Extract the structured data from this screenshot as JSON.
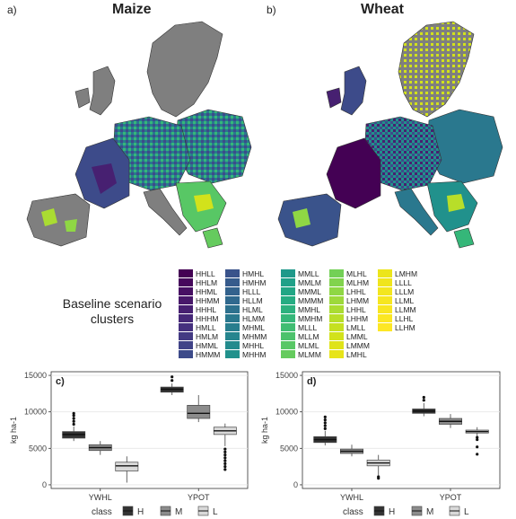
{
  "panels": {
    "a": {
      "tag": "a)",
      "title": "Maize"
    },
    "b": {
      "tag": "b)",
      "title": "Wheat"
    },
    "c": {
      "tag": "c)"
    },
    "d": {
      "tag": "d)"
    }
  },
  "legend": {
    "title": "Baseline scenario clusters",
    "columns": [
      [
        {
          "label": "HHLL",
          "color": "#440154"
        },
        {
          "label": "HHLM",
          "color": "#46085c"
        },
        {
          "label": "HHML",
          "color": "#471063"
        },
        {
          "label": "HHMM",
          "color": "#48186a"
        },
        {
          "label": "HHHL",
          "color": "#472071"
        },
        {
          "label": "HHHM",
          "color": "#462878"
        },
        {
          "label": "HMLL",
          "color": "#45307e"
        },
        {
          "label": "HMLM",
          "color": "#433a83"
        },
        {
          "label": "HMML",
          "color": "#404388"
        },
        {
          "label": "HMMM",
          "color": "#3d4b8a"
        }
      ],
      [
        {
          "label": "HMHL",
          "color": "#3a538b"
        },
        {
          "label": "HMHM",
          "color": "#365b8c"
        },
        {
          "label": "HLLL",
          "color": "#33628d"
        },
        {
          "label": "HLLM",
          "color": "#30698e"
        },
        {
          "label": "HLML",
          "color": "#2d718e"
        },
        {
          "label": "HLMM",
          "color": "#2a788e"
        },
        {
          "label": "MHML",
          "color": "#287e8e"
        },
        {
          "label": "MHMM",
          "color": "#26858e"
        },
        {
          "label": "MHHL",
          "color": "#238b8d"
        },
        {
          "label": "MHHM",
          "color": "#21918c"
        }
      ],
      [
        {
          "label": "MMLL",
          "color": "#1f998a"
        },
        {
          "label": "MMLM",
          "color": "#1fa088"
        },
        {
          "label": "MMML",
          "color": "#21a685"
        },
        {
          "label": "MMMM",
          "color": "#25ac82"
        },
        {
          "label": "MMHL",
          "color": "#2cb17e"
        },
        {
          "label": "MMHM",
          "color": "#35b779"
        },
        {
          "label": "MLLL",
          "color": "#40bd72"
        },
        {
          "label": "MLLM",
          "color": "#4cc26c"
        },
        {
          "label": "MLML",
          "color": "#58c765"
        },
        {
          "label": "MLMM",
          "color": "#65cb5e"
        }
      ],
      [
        {
          "label": "MLHL",
          "color": "#73d056"
        },
        {
          "label": "MLHM",
          "color": "#81d34d"
        },
        {
          "label": "LHHL",
          "color": "#8fd744"
        },
        {
          "label": "LHMM",
          "color": "#9dd93b"
        },
        {
          "label": "LHHL",
          "color": "#aadc32"
        },
        {
          "label": "LHHM",
          "color": "#b8de29"
        },
        {
          "label": "LMLL",
          "color": "#c5e021"
        },
        {
          "label": "LMML",
          "color": "#d2e21b"
        },
        {
          "label": "LMMM",
          "color": "#dfe318"
        },
        {
          "label": "LMHL",
          "color": "#e7e419"
        }
      ],
      [
        {
          "label": "LMHM",
          "color": "#ece51b"
        },
        {
          "label": "LLLL",
          "color": "#f0e51d"
        },
        {
          "label": "LLLM",
          "color": "#f3e61f"
        },
        {
          "label": "LLML",
          "color": "#f6e620"
        },
        {
          "label": "LLMM",
          "color": "#f8e621"
        },
        {
          "label": "LLHL",
          "color": "#fbe723"
        },
        {
          "label": "LLHM",
          "color": "#fde725"
        }
      ]
    ]
  },
  "chart_data": [
    {
      "type": "box",
      "panel": "c",
      "ylabel": "kg ha-1",
      "categories": [
        "YWHL",
        "YPOT"
      ],
      "yticks": [
        0,
        5000,
        10000,
        15000
      ],
      "ylim": [
        -500,
        15500
      ],
      "grid": true,
      "legend": {
        "title": "class",
        "entries": [
          "H",
          "M",
          "L"
        ],
        "position": "bottom"
      },
      "series": [
        {
          "name": "H",
          "color": "#333333",
          "boxes": [
            {
              "min": 6000,
              "q1": 6400,
              "median": 6900,
              "q3": 7300,
              "max": 8000,
              "outliers": [
                8300,
                8700,
                9100,
                9500,
                9800
              ]
            },
            {
              "min": 12300,
              "q1": 12700,
              "median": 13100,
              "q3": 13400,
              "max": 13900,
              "outliers": [
                14300,
                14800
              ]
            }
          ]
        },
        {
          "name": "M",
          "color": "#8c8c8c",
          "boxes": [
            {
              "min": 4100,
              "q1": 4700,
              "median": 5100,
              "q3": 5500,
              "max": 6000,
              "outliers": []
            },
            {
              "min": 8600,
              "q1": 9100,
              "median": 9800,
              "q3": 10900,
              "max": 12300,
              "outliers": []
            }
          ]
        },
        {
          "name": "L",
          "color": "#d9d9d9",
          "boxes": [
            {
              "min": 300,
              "q1": 1900,
              "median": 2600,
              "q3": 3100,
              "max": 3900,
              "outliers": []
            },
            {
              "min": 5300,
              "q1": 6900,
              "median": 7400,
              "q3": 7900,
              "max": 8400,
              "outliers": [
                2100,
                2500,
                2900,
                3300,
                3700,
                4100,
                4500,
                4900
              ]
            }
          ]
        }
      ]
    },
    {
      "type": "box",
      "panel": "d",
      "ylabel": "kg ha-1",
      "categories": [
        "YWHL",
        "YPOT"
      ],
      "yticks": [
        0,
        5000,
        10000,
        15000
      ],
      "ylim": [
        -500,
        15500
      ],
      "grid": true,
      "legend": {
        "title": "class",
        "entries": [
          "H",
          "M",
          "L"
        ],
        "position": "bottom"
      },
      "series": [
        {
          "name": "H",
          "color": "#333333",
          "boxes": [
            {
              "min": 5400,
              "q1": 5800,
              "median": 6200,
              "q3": 6600,
              "max": 7400,
              "outliers": [
                7700,
                8100,
                8500,
                8900,
                9300
              ]
            },
            {
              "min": 9400,
              "q1": 9800,
              "median": 10100,
              "q3": 10400,
              "max": 11200,
              "outliers": [
                11600,
                12000
              ]
            }
          ]
        },
        {
          "name": "M",
          "color": "#8c8c8c",
          "boxes": [
            {
              "min": 3900,
              "q1": 4300,
              "median": 4600,
              "q3": 4900,
              "max": 5500,
              "outliers": []
            },
            {
              "min": 7800,
              "q1": 8300,
              "median": 8700,
              "q3": 9100,
              "max": 9700,
              "outliers": []
            }
          ]
        },
        {
          "name": "L",
          "color": "#d9d9d9",
          "boxes": [
            {
              "min": 1300,
              "q1": 2600,
              "median": 3000,
              "q3": 3400,
              "max": 4100,
              "outliers": [
                900,
                1100
              ]
            },
            {
              "min": 6700,
              "q1": 7100,
              "median": 7300,
              "q3": 7500,
              "max": 7900,
              "outliers": [
                4200,
                5200,
                6200,
                6500
              ]
            }
          ]
        }
      ]
    }
  ]
}
